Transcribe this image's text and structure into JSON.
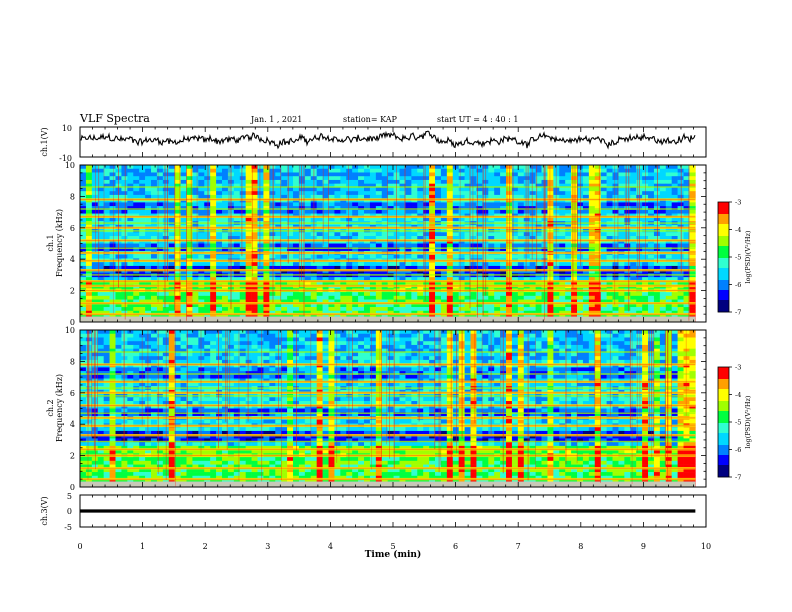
{
  "header": {
    "title": "VLF Spectra",
    "date": "Jan. 1 , 2021",
    "station": "station= KAP",
    "start": "start UT = 4 : 40 : 1"
  },
  "chart_data": [
    {
      "type": "line",
      "panel": "ch1-waveform",
      "ylabel": "ch.1(V)",
      "ylim": [
        -10,
        10
      ],
      "yticks": [
        "10",
        "-10"
      ],
      "x_range_min": [
        0,
        9.83
      ],
      "approx_mean": 1.5,
      "approx_amplitude": 4
    },
    {
      "type": "heatmap",
      "panel": "ch1-spectrogram",
      "ylabel": "ch.1",
      "ylabel2": "Frequency (kHz)",
      "ylim": [
        0,
        10
      ],
      "yticks": [
        "0",
        "2",
        "4",
        "6",
        "8",
        "10"
      ],
      "colorbar_label": "log(PSD)(V²/Hz)",
      "colorbar_range": [
        -7,
        -3
      ],
      "colorbar_ticks": [
        "-3",
        "-4",
        "-5",
        "-6",
        "-7"
      ],
      "strong_bands_khz": [
        0.5,
        1.2,
        2.0,
        2.3,
        2.6,
        3.3,
        3.9,
        4.4,
        5.2,
        6.0,
        6.7,
        7.8
      ],
      "weak_bands_khz": [
        3.0,
        4.7,
        5.8,
        6.3,
        7.2,
        8.6
      ]
    },
    {
      "type": "heatmap",
      "panel": "ch2-spectrogram",
      "ylabel": "ch.2",
      "ylabel2": "Frequency (kHz)",
      "ylim": [
        0,
        10
      ],
      "yticks": [
        "0",
        "2",
        "4",
        "6",
        "8",
        "10"
      ],
      "colorbar_label": "log(PSD)(V²/Hz)",
      "colorbar_range": [
        -7,
        -3
      ],
      "colorbar_ticks": [
        "-3",
        "-4",
        "-5",
        "-6",
        "-7"
      ],
      "strong_bands_khz": [
        0.5,
        1.2,
        2.0,
        2.4,
        3.3,
        3.9,
        4.4,
        5.2,
        6.0,
        6.7,
        7.8
      ],
      "weak_bands_khz": [
        2.9,
        4.7,
        5.8,
        6.3,
        7.2,
        8.6
      ]
    },
    {
      "type": "line",
      "panel": "ch3-waveform",
      "ylabel": "ch.3(V)",
      "ylim": [
        -5,
        5
      ],
      "yticks": [
        "5",
        "0",
        "-5"
      ],
      "approx_mean": 0,
      "approx_amplitude": 0.5
    }
  ],
  "xaxis": {
    "label": "Time (min)",
    "ticks": [
      "0",
      "1",
      "2",
      "3",
      "4",
      "5",
      "6",
      "7",
      "8",
      "9",
      "10"
    ],
    "xlim": [
      0,
      10
    ],
    "data_end_min": 9.83
  },
  "colormap": [
    "#000080",
    "#0000ff",
    "#0080ff",
    "#00d8ff",
    "#30ffd0",
    "#00ff40",
    "#a0ff00",
    "#ffff00",
    "#ffa000",
    "#ff0000",
    "#ffffff"
  ]
}
